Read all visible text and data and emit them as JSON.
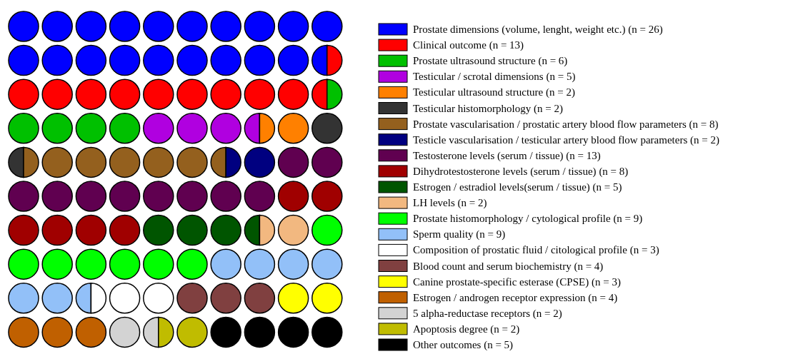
{
  "chart_data": {
    "type": "other",
    "categories": [
      "Prostate dimensions (volume, lenght, weight etc.)",
      "Clinical outcome",
      "Prostate ultrasound structure",
      "Testicular / scrotal dimensions",
      "Testicular ultrasound structure",
      "Testicular histomorphology",
      "Prostate vascularisation / prostatic artery blood flow parameters",
      "Testicle vascularisation / testicular artery blood flow parameters",
      "Testosterone levels (serum / tissue)",
      "Dihydrotestosterone levels (serum / tissue)",
      "Estrogen / estradiol levels(serum / tissue)",
      "LH levels",
      "Prostate histomorphology / cytological profile",
      "Sperm quality",
      "Composition of prostatic fluid / citological profile",
      "Blood count and serum biochemistry",
      "Canine prostate-specific esterase (CPSE)",
      "Estrogen / androgen receptor expression",
      "5 alpha-reductase receptors",
      "Apoptosis degree",
      "Other outcomes"
    ],
    "values": [
      26,
      13,
      6,
      5,
      2,
      2,
      8,
      2,
      13,
      8,
      5,
      2,
      9,
      9,
      3,
      4,
      3,
      4,
      2,
      2,
      5
    ],
    "value_labels": [
      "(n = 26)",
      "(n = 13)",
      "(n = 6)",
      "(n = 5)",
      "(n = 2)",
      "(n = 2)",
      "(n = 8)",
      "(n = 2)",
      "(n = 13)",
      "(n = 8)",
      "(n = 5)",
      "(n = 2)",
      "(n = 9)",
      "(n = 9)",
      "(n = 3)",
      "(n = 4)",
      "(n = 3)",
      "(n = 4)",
      "(n = 2)",
      "(n = 2)",
      "(n = 5)"
    ],
    "colors": [
      "#0000ff",
      "#ff0000",
      "#00c000",
      "#b000e0",
      "#ff8000",
      "#333333",
      "#94601e",
      "#000080",
      "#600050",
      "#a00000",
      "#005500",
      "#f2b880",
      "#00ff00",
      "#92c0f8",
      "#ffffff",
      "#804040",
      "#ffff00",
      "#c06000",
      "#d3d3d3",
      "#c0bc00",
      "#000000"
    ]
  }
}
